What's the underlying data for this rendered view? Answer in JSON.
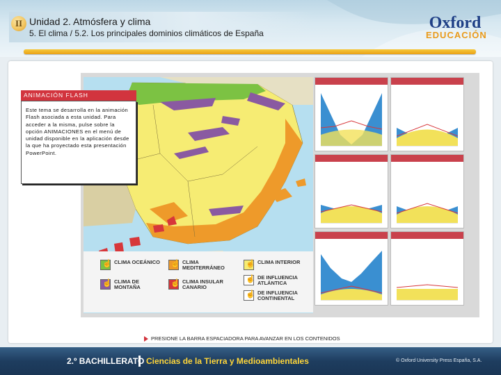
{
  "header": {
    "unit_number": "II",
    "unit_title": "Unidad 2. Atmósfera y clima",
    "section_path": "5. El clima / 5.2. Los principales dominios climáticos de España",
    "logo_line1": "Oxford",
    "logo_line2": "EDUCACIÓN"
  },
  "animation": {
    "label": "ANIMACIÓN FLASH",
    "text": "Este tema se desarrolla en la animación Flash asociada a esta unidad. Para acceder a la misma, pulse sobre la opción ANIMACIONES en el menú de unidad disponible en la aplicación desde la que ha proyectado esta presentación PowerPoint."
  },
  "legend": [
    {
      "label": "CLIMA OCEÁNICO",
      "color": "#7cc243",
      "hand": true
    },
    {
      "label": "CLIMA MEDITERRÁNEO",
      "color": "#ee9a2a",
      "hand": true
    },
    {
      "label": "CLIMA INTERIOR",
      "color": "#f6ec73",
      "hand": true
    },
    {
      "label": "DE INFLUENCIA ATLÁNTICA",
      "color": "#ffffff",
      "hand": true
    },
    {
      "label": "CLIMA DE MONTAÑA",
      "color": "#8a5aa1",
      "hand": true
    },
    {
      "label": "CLIMA INSULAR CANARIO",
      "color": "#d7373a",
      "hand": true
    },
    {
      "label": "DE INFLUENCIA CONTINENTAL",
      "color": "#ffffff",
      "hand": true
    }
  ],
  "colors": {
    "oceanic": "#7cc243",
    "mediterranean": "#ee9a2a",
    "interior": "#f6ec73",
    "mountain": "#8a5aa1",
    "canary": "#d7373a",
    "sea": "#b6dff0",
    "accent": "#d2343e",
    "footer": "#1e3d5f"
  },
  "footer": {
    "press_text": "PRESIONE LA BARRA ESPACIADORA PARA AVANZAR EN LOS CONTENIDOS",
    "course": "2.º BACHILLERATO",
    "subject": "Ciencias de la Tierra y Medioambientales",
    "copyright": "© Oxford University Press España, S.A."
  }
}
